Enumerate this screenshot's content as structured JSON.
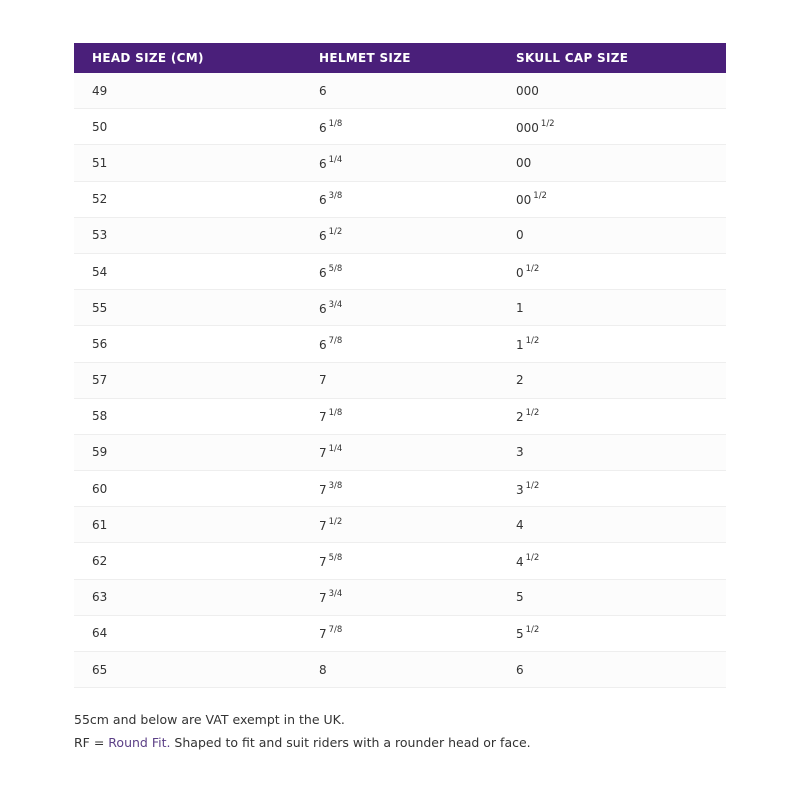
{
  "table": {
    "headers": [
      "HEAD SIZE (CM)",
      "HELMET SIZE",
      "SKULL CAP SIZE"
    ],
    "rows": [
      {
        "head": "49",
        "helmet": "6",
        "helmet_frac": "",
        "cap": "000",
        "cap_frac": ""
      },
      {
        "head": "50",
        "helmet": "6",
        "helmet_frac": "1/8",
        "cap": "000",
        "cap_frac": "1/2"
      },
      {
        "head": "51",
        "helmet": "6",
        "helmet_frac": "1/4",
        "cap": "00",
        "cap_frac": ""
      },
      {
        "head": "52",
        "helmet": "6",
        "helmet_frac": "3/8",
        "cap": "00",
        "cap_frac": "1/2"
      },
      {
        "head": "53",
        "helmet": "6",
        "helmet_frac": "1/2",
        "cap": "0",
        "cap_frac": ""
      },
      {
        "head": "54",
        "helmet": "6",
        "helmet_frac": "5/8",
        "cap": "0",
        "cap_frac": "1/2"
      },
      {
        "head": "55",
        "helmet": "6",
        "helmet_frac": "3/4",
        "cap": "1",
        "cap_frac": ""
      },
      {
        "head": "56",
        "helmet": "6",
        "helmet_frac": "7/8",
        "cap": "1",
        "cap_frac": "1/2"
      },
      {
        "head": "57",
        "helmet": "7",
        "helmet_frac": "",
        "cap": "2",
        "cap_frac": ""
      },
      {
        "head": "58",
        "helmet": "7",
        "helmet_frac": "1/8",
        "cap": "2",
        "cap_frac": "1/2"
      },
      {
        "head": "59",
        "helmet": "7",
        "helmet_frac": "1/4",
        "cap": "3",
        "cap_frac": ""
      },
      {
        "head": "60",
        "helmet": "7",
        "helmet_frac": "3/8",
        "cap": "3",
        "cap_frac": "1/2"
      },
      {
        "head": "61",
        "helmet": "7",
        "helmet_frac": "1/2",
        "cap": "4",
        "cap_frac": ""
      },
      {
        "head": "62",
        "helmet": "7",
        "helmet_frac": "5/8",
        "cap": "4",
        "cap_frac": "1/2"
      },
      {
        "head": "63",
        "helmet": "7",
        "helmet_frac": "3/4",
        "cap": "5",
        "cap_frac": ""
      },
      {
        "head": "64",
        "helmet": "7",
        "helmet_frac": "7/8",
        "cap": "5",
        "cap_frac": "1/2"
      },
      {
        "head": "65",
        "helmet": "8",
        "helmet_frac": "",
        "cap": "6",
        "cap_frac": ""
      }
    ]
  },
  "notes": {
    "vat": "55cm and below are VAT exempt in the UK.",
    "rf_prefix": "RF = ",
    "rf_link": "Round Fit.",
    "rf_suffix": " Shaped to fit and suit riders with a rounder head or face."
  },
  "colors": {
    "header_bg": "#4a1f7a",
    "link": "#5b3f86"
  }
}
